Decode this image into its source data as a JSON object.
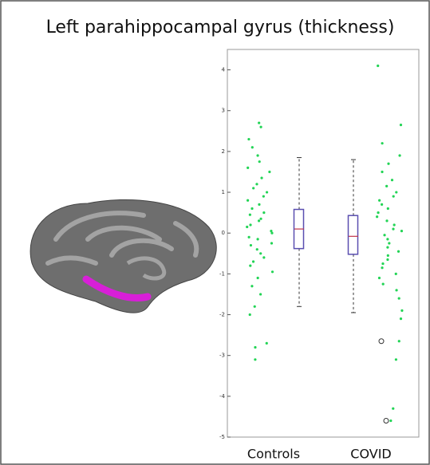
{
  "chart_data": {
    "type": "box",
    "title": "Left parahippocampal gyrus (thickness)",
    "categories": [
      "Controls",
      "COVID"
    ],
    "box_color": "#5a4fb0",
    "median_color": "#c0334a",
    "point_color": "#22d455",
    "ylim": [
      -5,
      4.5
    ],
    "yticks": [
      -5,
      -4,
      -3,
      -2,
      -1,
      0,
      1,
      2,
      3,
      4
    ],
    "boxes": [
      {
        "whisker_low": -1.8,
        "q1": -0.38,
        "median": 0.1,
        "q3": 0.58,
        "whisker_high": 1.85
      },
      {
        "whisker_low": -1.95,
        "q1": -0.52,
        "median": -0.08,
        "q3": 0.43,
        "whisker_high": 1.8
      }
    ],
    "points": [
      [
        2.7,
        2.6,
        2.3,
        2.1,
        1.9,
        1.75,
        1.6,
        1.5,
        1.35,
        1.2,
        1.1,
        1.0,
        0.9,
        0.8,
        0.7,
        0.6,
        0.5,
        0.45,
        0.35,
        0.3,
        0.2,
        0.15,
        0.05,
        0.0,
        -0.1,
        -0.15,
        -0.25,
        -0.3,
        -0.4,
        -0.5,
        -0.6,
        -0.7,
        -0.8,
        -0.95,
        -1.1,
        -1.3,
        -1.5,
        -1.8,
        -2.0,
        -2.7,
        -2.8,
        -3.1
      ],
      [
        4.1,
        2.65,
        2.2,
        1.9,
        1.7,
        1.5,
        1.3,
        1.15,
        1.0,
        0.9,
        0.8,
        0.7,
        0.6,
        0.5,
        0.4,
        0.3,
        0.2,
        0.1,
        0.05,
        -0.05,
        -0.15,
        -0.25,
        -0.35,
        -0.45,
        -0.55,
        -0.65,
        -0.75,
        -0.85,
        -1.0,
        -1.1,
        -1.25,
        -1.4,
        -1.6,
        -1.9,
        -2.1,
        -2.65,
        -3.1,
        -4.3,
        -4.6
      ]
    ],
    "outliers": [
      [],
      [
        -2.65,
        -4.6
      ]
    ]
  }
}
